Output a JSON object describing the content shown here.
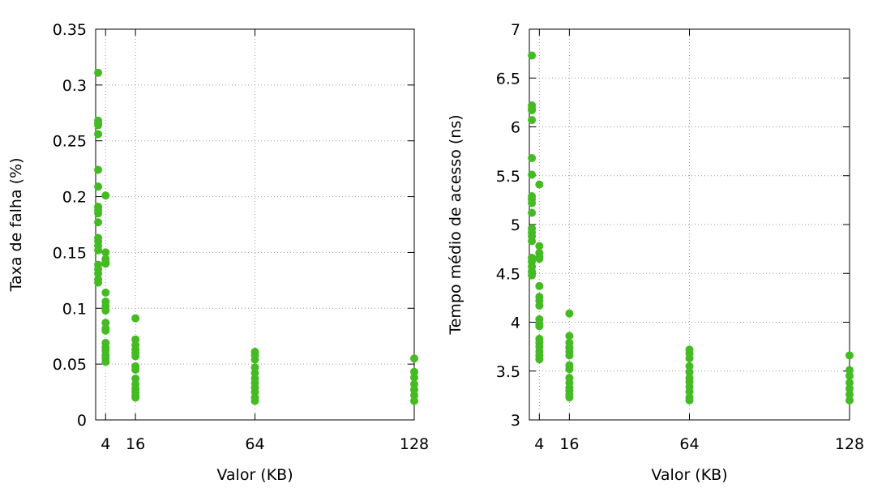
{
  "chart_data": [
    {
      "type": "scatter",
      "title": "",
      "xlabel": "Valor (KB)",
      "ylabel": "Taxa de falha (%)",
      "xlim": [
        0,
        128
      ],
      "ylim": [
        0,
        0.35
      ],
      "grid": true,
      "legend": "none",
      "x_ticks": [
        4,
        16,
        64,
        128
      ],
      "x_tick_labels": [
        "4",
        "16",
        "64",
        "128"
      ],
      "y_ticks": [
        0,
        0.05,
        0.1,
        0.15,
        0.2,
        0.25,
        0.3,
        0.35
      ],
      "y_tick_labels": [
        "0",
        "0.05",
        "0.1",
        "0.15",
        "0.2",
        "0.25",
        "0.3",
        "0.35"
      ],
      "colors": {
        "marker": "#44bb22"
      },
      "series": [
        {
          "points": [
            [
              1,
              0.311
            ],
            [
              1,
              0.268
            ],
            [
              1,
              0.266
            ],
            [
              1,
              0.264
            ],
            [
              1,
              0.256
            ],
            [
              1,
              0.224
            ],
            [
              1,
              0.209
            ],
            [
              1,
              0.191
            ],
            [
              1,
              0.188
            ],
            [
              1,
              0.185
            ],
            [
              1,
              0.177
            ],
            [
              1,
              0.163
            ],
            [
              1,
              0.16
            ],
            [
              1,
              0.156
            ],
            [
              1,
              0.152
            ],
            [
              1,
              0.139
            ],
            [
              1,
              0.135
            ],
            [
              1,
              0.131
            ],
            [
              1,
              0.126
            ],
            [
              1,
              0.123
            ],
            [
              4,
              0.201
            ],
            [
              4,
              0.15
            ],
            [
              4,
              0.144
            ],
            [
              4,
              0.141
            ],
            [
              4,
              0.14
            ],
            [
              4,
              0.114
            ],
            [
              4,
              0.106
            ],
            [
              4,
              0.102
            ],
            [
              4,
              0.098
            ],
            [
              4,
              0.087
            ],
            [
              4,
              0.082
            ],
            [
              4,
              0.08
            ],
            [
              4,
              0.069
            ],
            [
              4,
              0.065
            ],
            [
              4,
              0.062
            ],
            [
              4,
              0.058
            ],
            [
              4,
              0.055
            ],
            [
              4,
              0.052
            ],
            [
              16,
              0.091
            ],
            [
              16,
              0.072
            ],
            [
              16,
              0.067
            ],
            [
              16,
              0.063
            ],
            [
              16,
              0.06
            ],
            [
              16,
              0.057
            ],
            [
              16,
              0.048
            ],
            [
              16,
              0.045
            ],
            [
              16,
              0.037
            ],
            [
              16,
              0.032
            ],
            [
              16,
              0.028
            ],
            [
              16,
              0.025
            ],
            [
              16,
              0.022
            ],
            [
              16,
              0.02
            ],
            [
              64,
              0.061
            ],
            [
              64,
              0.058
            ],
            [
              64,
              0.054
            ],
            [
              64,
              0.047
            ],
            [
              64,
              0.042
            ],
            [
              64,
              0.037
            ],
            [
              64,
              0.033
            ],
            [
              64,
              0.029
            ],
            [
              64,
              0.025
            ],
            [
              64,
              0.02
            ],
            [
              64,
              0.017
            ],
            [
              128,
              0.055
            ],
            [
              128,
              0.043
            ],
            [
              128,
              0.038
            ],
            [
              128,
              0.032
            ],
            [
              128,
              0.027
            ],
            [
              128,
              0.022
            ],
            [
              128,
              0.017
            ]
          ]
        }
      ]
    },
    {
      "type": "scatter",
      "title": "",
      "xlabel": "Valor (KB)",
      "ylabel": "Tempo médio de acesso (ns)",
      "xlim": [
        0,
        128
      ],
      "ylim": [
        3,
        7
      ],
      "grid": true,
      "legend": "none",
      "x_ticks": [
        4,
        16,
        64,
        128
      ],
      "x_tick_labels": [
        "4",
        "16",
        "64",
        "128"
      ],
      "y_ticks": [
        3,
        3.5,
        4,
        4.5,
        5,
        5.5,
        6,
        6.5,
        7
      ],
      "y_tick_labels": [
        "3",
        "3.5",
        "4",
        "4.5",
        "5",
        "5.5",
        "6",
        "6.5",
        "7"
      ],
      "colors": {
        "marker": "#44bb22"
      },
      "series": [
        {
          "points": [
            [
              1,
              6.73
            ],
            [
              1,
              6.22
            ],
            [
              1,
              6.19
            ],
            [
              1,
              6.17
            ],
            [
              1,
              6.07
            ],
            [
              1,
              5.68
            ],
            [
              1,
              5.51
            ],
            [
              1,
              5.29
            ],
            [
              1,
              5.26
            ],
            [
              1,
              5.22
            ],
            [
              1,
              5.12
            ],
            [
              1,
              4.96
            ],
            [
              1,
              4.92
            ],
            [
              1,
              4.88
            ],
            [
              1,
              4.83
            ],
            [
              1,
              4.66
            ],
            [
              1,
              4.62
            ],
            [
              1,
              4.57
            ],
            [
              1,
              4.52
            ],
            [
              1,
              4.48
            ],
            [
              4,
              5.41
            ],
            [
              4,
              4.78
            ],
            [
              4,
              4.71
            ],
            [
              4,
              4.67
            ],
            [
              4,
              4.65
            ],
            [
              4,
              4.37
            ],
            [
              4,
              4.26
            ],
            [
              4,
              4.22
            ],
            [
              4,
              4.17
            ],
            [
              4,
              4.03
            ],
            [
              4,
              3.98
            ],
            [
              4,
              3.96
            ],
            [
              4,
              3.83
            ],
            [
              4,
              3.79
            ],
            [
              4,
              3.75
            ],
            [
              4,
              3.7
            ],
            [
              4,
              3.66
            ],
            [
              4,
              3.62
            ],
            [
              16,
              4.09
            ],
            [
              16,
              3.86
            ],
            [
              16,
              3.79
            ],
            [
              16,
              3.74
            ],
            [
              16,
              3.7
            ],
            [
              16,
              3.66
            ],
            [
              16,
              3.56
            ],
            [
              16,
              3.52
            ],
            [
              16,
              3.43
            ],
            [
              16,
              3.38
            ],
            [
              16,
              3.33
            ],
            [
              16,
              3.3
            ],
            [
              16,
              3.26
            ],
            [
              16,
              3.23
            ],
            [
              64,
              3.72
            ],
            [
              64,
              3.68
            ],
            [
              64,
              3.63
            ],
            [
              64,
              3.55
            ],
            [
              64,
              3.49
            ],
            [
              64,
              3.43
            ],
            [
              64,
              3.39
            ],
            [
              64,
              3.34
            ],
            [
              64,
              3.29
            ],
            [
              64,
              3.23
            ],
            [
              64,
              3.2
            ],
            [
              128,
              3.66
            ],
            [
              128,
              3.51
            ],
            [
              128,
              3.45
            ],
            [
              128,
              3.38
            ],
            [
              128,
              3.32
            ],
            [
              128,
              3.26
            ],
            [
              128,
              3.2
            ]
          ]
        }
      ]
    }
  ]
}
